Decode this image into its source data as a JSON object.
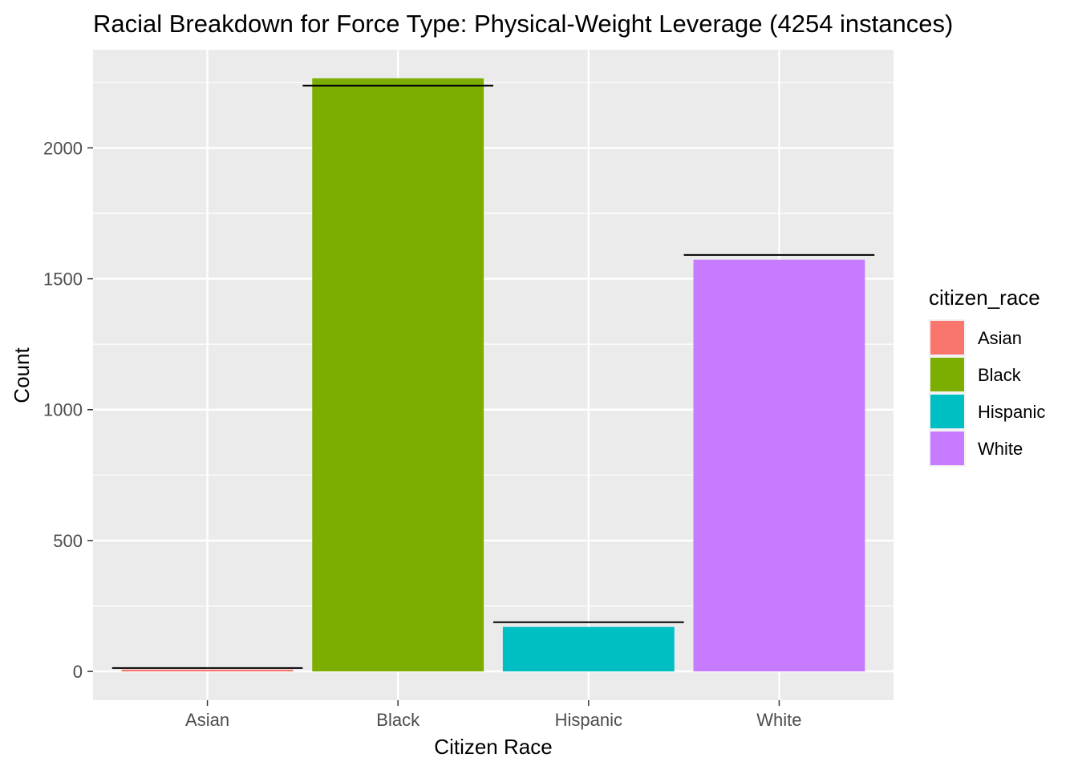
{
  "chart_data": {
    "type": "bar",
    "title": "Racial Breakdown for Force Type: Physical-Weight Leverage (4254 instances)",
    "xlabel": "Citizen Race",
    "ylabel": "Count",
    "categories": [
      "Asian",
      "Black",
      "Hispanic",
      "White"
    ],
    "values": [
      7,
      2266,
      170,
      1573
    ],
    "reference_values": [
      13,
      2238,
      188,
      1591
    ],
    "ylim": [
      -110,
      2375
    ],
    "yticks": [
      0,
      500,
      1000,
      1500,
      2000
    ],
    "legend": {
      "title": "citizen_race",
      "position": "right",
      "entries": [
        "Asian",
        "Black",
        "Hispanic",
        "White"
      ]
    },
    "colors": [
      "#F8766D",
      "#7CAE00",
      "#00BFC4",
      "#C77CFF"
    ],
    "panel_background": "#EBEBEB",
    "grid": true
  }
}
